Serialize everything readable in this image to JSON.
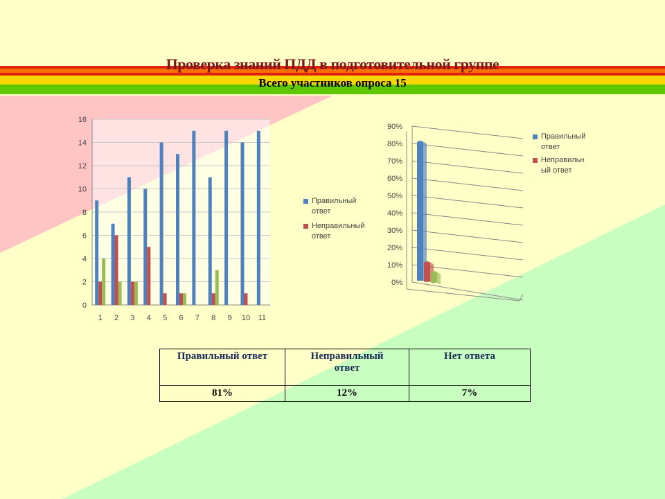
{
  "header": {
    "title": "Проверка знаний ПДД в подготовительной группе",
    "subtitle": "Всего участников опроса 15"
  },
  "colors": {
    "background": "#ffffc8",
    "pink_region": "#ffc4c4",
    "green_region": "#c8ffc0",
    "stripe_red": "#e02010",
    "stripe_orange": "#ff7000",
    "stripe_yellow": "#f8d800",
    "stripe_green": "#60c800",
    "series_correct": "#4f81bd",
    "series_incorrect": "#c0504d",
    "series_no_answer": "#9bbb59"
  },
  "chart_data": [
    {
      "type": "bar",
      "title": "",
      "xlabel": "",
      "ylabel": "",
      "categories": [
        "1",
        "2",
        "3",
        "4",
        "5",
        "6",
        "7",
        "8",
        "9",
        "10",
        "11"
      ],
      "ylim": [
        0,
        16
      ],
      "yticks": [
        "0",
        "2",
        "4",
        "6",
        "8",
        "10",
        "12",
        "14",
        "16"
      ],
      "grid": true,
      "legend": "right",
      "series": [
        {
          "name": "Правильный ответ",
          "values": [
            9,
            7,
            11,
            10,
            14,
            13,
            15,
            11,
            15,
            14,
            15
          ]
        },
        {
          "values": [
            2,
            6,
            2,
            5,
            1,
            1,
            0,
            1,
            0,
            1,
            0
          ]
        },
        {
          "values": [
            4,
            2,
            2,
            0,
            0,
            1,
            0,
            3,
            0,
            0,
            0
          ]
        }
      ],
      "legend_entries": [
        {
          "line1": "Правильный",
          "line2": "ответ"
        },
        {
          "line1": "Неправильный",
          "line2": "ответ"
        }
      ]
    },
    {
      "type": "bar",
      "title": "",
      "xlabel": "",
      "ylabel": "",
      "projection": "3d",
      "ylim": [
        0,
        90
      ],
      "yticks": [
        "0%",
        "10%",
        "20%",
        "30%",
        "40%",
        "50%",
        "60%",
        "70%",
        "80%",
        "90%"
      ],
      "grid": true,
      "legend": "right",
      "series": [
        {
          "values": [
            81
          ]
        },
        {
          "values": [
            12
          ]
        },
        {
          "values": [
            7
          ]
        }
      ],
      "legend_entries": [
        {
          "line1": "Правильный",
          "line2": "ответ"
        },
        {
          "line1": "Неправильн",
          "line2": "ый ответ"
        }
      ]
    }
  ],
  "table": {
    "headers": [
      {
        "line1": "Правильный ответ",
        "line2": ""
      },
      {
        "line1": "Неправильный",
        "line2": "ответ"
      },
      {
        "line1": "Нет ответа",
        "line2": ""
      }
    ],
    "values": [
      "81%",
      "12%",
      "7%"
    ]
  }
}
